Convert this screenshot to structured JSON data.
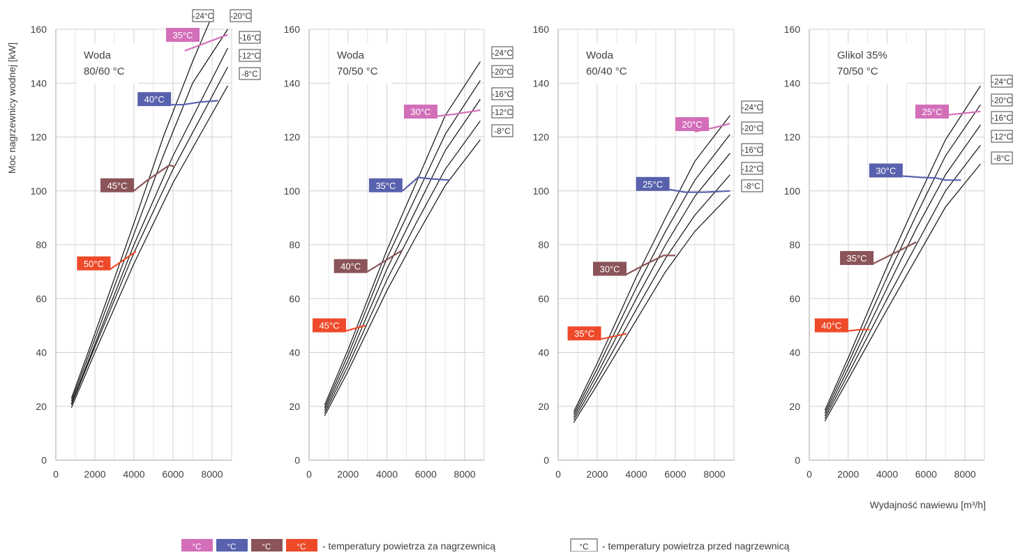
{
  "page": {
    "ylabel": "Moc nagrzewnicy wodnej [kW]",
    "xlabel": "Wydajność nawiewu [m³/h]",
    "legend_after_label": "- temperatury powietrza za nagrzewnicą",
    "legend_before_label": "- temperatury powietrza przed nagrzewnicą",
    "legend_unit": "°C",
    "legend_colors": [
      "#d36fb9",
      "#5861ad",
      "#8a5458",
      "#ee4a2a"
    ]
  },
  "chart_data": [
    {
      "type": "line",
      "title_lines": [
        "Woda",
        "80/60 °C"
      ],
      "xticks": [
        0,
        2000,
        4000,
        6000,
        8000
      ],
      "yticks": [
        0,
        20,
        40,
        60,
        80,
        100,
        120,
        140,
        160
      ],
      "xlim": [
        0,
        9000
      ],
      "ylim": [
        0,
        160
      ],
      "grid": true,
      "series": [
        {
          "name": "-24°C",
          "x": [
            800,
            2000,
            4000,
            5500,
            7000,
            8000
          ],
          "y": [
            23,
            47,
            88,
            120,
            148,
            165
          ]
        },
        {
          "name": "-20°C",
          "x": [
            800,
            2000,
            4000,
            5500,
            7000,
            8800
          ],
          "y": [
            22,
            45,
            84,
            113,
            140,
            160
          ]
        },
        {
          "name": "-16°C",
          "x": [
            800,
            2000,
            4000,
            6000,
            8800
          ],
          "y": [
            21,
            43,
            80,
            113,
            153
          ]
        },
        {
          "name": "-12°C",
          "x": [
            800,
            2000,
            4000,
            6000,
            8800
          ],
          "y": [
            20.5,
            42,
            77,
            108,
            146
          ]
        },
        {
          "name": "-8°C",
          "x": [
            800,
            2000,
            4000,
            6000,
            8800
          ],
          "y": [
            19.5,
            40,
            73,
            103,
            139
          ]
        }
      ],
      "outlet_lines": [
        {
          "label": "35°C",
          "color": "#d36fb9",
          "x": [
            6600,
            8800
          ],
          "y": [
            152,
            158
          ]
        },
        {
          "label": "40°C",
          "color": "#5861ad",
          "x": [
            5900,
            6500,
            7400,
            8300
          ],
          "y": [
            132,
            132,
            133,
            133.5
          ]
        },
        {
          "label": "45°C",
          "color": "#8a5458",
          "x": [
            4000,
            4700,
            5300,
            5800,
            6100
          ],
          "y": [
            100,
            104,
            107,
            109.5,
            109
          ]
        },
        {
          "label": "50°C",
          "color": "#ee4a2a",
          "x": [
            2800,
            3300,
            3800,
            4100
          ],
          "y": [
            71,
            73.5,
            76,
            77.5
          ]
        }
      ]
    },
    {
      "type": "line",
      "title_lines": [
        "Woda",
        "70/50 °C"
      ],
      "xticks": [
        0,
        2000,
        4000,
        6000,
        8000
      ],
      "yticks": [
        0,
        20,
        40,
        60,
        80,
        100,
        120,
        140,
        160
      ],
      "xlim": [
        0,
        9000
      ],
      "ylim": [
        0,
        160
      ],
      "grid": true,
      "series": [
        {
          "name": "-24°C",
          "x": [
            800,
            2000,
            4000,
            5500,
            7000,
            8800
          ],
          "y": [
            20.5,
            41,
            78,
            103,
            128,
            148
          ]
        },
        {
          "name": "-20°C",
          "x": [
            800,
            2000,
            4000,
            5500,
            7000,
            8800
          ],
          "y": [
            19.5,
            39,
            75,
            98,
            121,
            141
          ]
        },
        {
          "name": "-16°C",
          "x": [
            800,
            2000,
            4000,
            5500,
            7000,
            8800
          ],
          "y": [
            18.5,
            37,
            71,
            93,
            115,
            134
          ]
        },
        {
          "name": "-12°C",
          "x": [
            800,
            2000,
            4000,
            5500,
            7000,
            8800
          ],
          "y": [
            17.5,
            35,
            67,
            88,
            108,
            126
          ]
        },
        {
          "name": "-8°C",
          "x": [
            800,
            2000,
            4000,
            5500,
            7000,
            8800
          ],
          "y": [
            16.5,
            33,
            63,
            83,
            102,
            119
          ]
        }
      ],
      "outlet_lines": [
        {
          "label": "30°C",
          "color": "#d36fb9",
          "x": [
            6300,
            7500,
            8800
          ],
          "y": [
            127.5,
            128.5,
            130
          ]
        },
        {
          "label": "35°C",
          "color": "#5861ad",
          "x": [
            4800,
            5600,
            6200,
            7200
          ],
          "y": [
            100,
            105,
            104.5,
            104
          ]
        },
        {
          "label": "40°C",
          "color": "#8a5458",
          "x": [
            3000,
            3900,
            4800
          ],
          "y": [
            70,
            74,
            78
          ]
        },
        {
          "label": "45°C",
          "color": "#ee4a2a",
          "x": [
            1900,
            2400,
            2900
          ],
          "y": [
            48,
            49,
            50
          ]
        }
      ]
    },
    {
      "type": "line",
      "title_lines": [
        "Woda",
        "60/40 °C"
      ],
      "xticks": [
        0,
        2000,
        4000,
        6000,
        8000
      ],
      "yticks": [
        0,
        20,
        40,
        60,
        80,
        100,
        120,
        140,
        160
      ],
      "xlim": [
        0,
        9000
      ],
      "ylim": [
        0,
        160
      ],
      "grid": true,
      "series": [
        {
          "name": "-24°C",
          "x": [
            800,
            2000,
            4000,
            5500,
            7000,
            8800
          ],
          "y": [
            18,
            36,
            68,
            90,
            111,
            128
          ]
        },
        {
          "name": "-20°C",
          "x": [
            800,
            2000,
            4000,
            5500,
            7000,
            8800
          ],
          "y": [
            17,
            34,
            64,
            85,
            104,
            121
          ]
        },
        {
          "name": "-16°C",
          "x": [
            800,
            2000,
            4000,
            5500,
            7000,
            8800
          ],
          "y": [
            16,
            32,
            60,
            80,
            98,
            114
          ]
        },
        {
          "name": "-12°C",
          "x": [
            800,
            2000,
            4000,
            5500,
            7000,
            8800
          ],
          "y": [
            15,
            30,
            56,
            75,
            91,
            106
          ]
        },
        {
          "name": "-8°C",
          "x": [
            800,
            2000,
            4000,
            5500,
            7000,
            8800
          ],
          "y": [
            14,
            28,
            52,
            70,
            85,
            98.5
          ]
        }
      ],
      "outlet_lines": [
        {
          "label": "20°C",
          "color": "#d36fb9",
          "x": [
            7000,
            8000,
            8800
          ],
          "y": [
            122,
            123.5,
            125
          ]
        },
        {
          "label": "25°C",
          "color": "#5861ad",
          "x": [
            5700,
            6500,
            7500,
            8800
          ],
          "y": [
            100.5,
            99.5,
            99.5,
            100
          ]
        },
        {
          "label": "30°C",
          "color": "#8a5458",
          "x": [
            3500,
            4400,
            5400,
            6000
          ],
          "y": [
            69,
            72.5,
            76,
            76
          ]
        },
        {
          "label": "35°C",
          "color": "#ee4a2a",
          "x": [
            2200,
            2900,
            3500
          ],
          "y": [
            45,
            46,
            47
          ]
        }
      ]
    },
    {
      "type": "line",
      "title_lines": [
        "Glikol 35%",
        "70/50 °C"
      ],
      "xticks": [
        0,
        2000,
        4000,
        6000,
        8000
      ],
      "yticks": [
        0,
        20,
        40,
        60,
        80,
        100,
        120,
        140,
        160
      ],
      "xlim": [
        0,
        9000
      ],
      "ylim": [
        0,
        160
      ],
      "grid": true,
      "series": [
        {
          "name": "-24°C",
          "x": [
            800,
            2000,
            4000,
            5500,
            7000,
            8800
          ],
          "y": [
            18.5,
            38,
            72,
            96,
            119,
            139
          ]
        },
        {
          "name": "-20°C",
          "x": [
            800,
            2000,
            4000,
            5500,
            7000,
            8800
          ],
          "y": [
            17.5,
            36,
            68,
            91,
            113,
            132
          ]
        },
        {
          "name": "-16°C",
          "x": [
            800,
            2000,
            4000,
            5500,
            7000,
            8800
          ],
          "y": [
            16.5,
            34,
            64,
            86,
            106,
            124.5
          ]
        },
        {
          "name": "-12°C",
          "x": [
            800,
            2000,
            4000,
            5500,
            7000,
            8800
          ],
          "y": [
            15.5,
            32,
            60,
            80,
            100,
            117
          ]
        },
        {
          "name": "-8°C",
          "x": [
            800,
            2000,
            4000,
            5500,
            7000,
            8800
          ],
          "y": [
            14.5,
            30,
            56,
            75,
            94,
            110
          ]
        }
      ],
      "outlet_lines": [
        {
          "label": "25°C",
          "color": "#d36fb9",
          "x": [
            6200,
            7500,
            8800
          ],
          "y": [
            127.5,
            128.5,
            129.5
          ]
        },
        {
          "label": "30°C",
          "color": "#5861ad",
          "x": [
            4800,
            5700,
            6500,
            7000,
            7800
          ],
          "y": [
            105.5,
            105,
            104.8,
            104,
            104
          ]
        },
        {
          "label": "35°C",
          "color": "#8a5458",
          "x": [
            3300,
            4400,
            5500
          ],
          "y": [
            73,
            77,
            81
          ]
        },
        {
          "label": "40°C",
          "color": "#ee4a2a",
          "x": [
            2000,
            2600,
            3100
          ],
          "y": [
            48,
            48.5,
            48.5
          ]
        }
      ]
    }
  ]
}
